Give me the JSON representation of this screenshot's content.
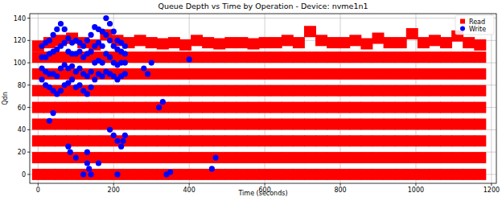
{
  "chart_data": {
    "type": "scatter",
    "title": "Queue Depth vs Time by Operation - Device: nvme1n1",
    "x_label": "Time (seconds)",
    "y_label": "Qdn",
    "xlim": [
      -22,
      1213
    ],
    "ylim": [
      -8,
      144
    ],
    "xticks": [
      0,
      200,
      400,
      600,
      800,
      1000,
      1200
    ],
    "yticks": [
      0,
      20,
      40,
      60,
      80,
      100,
      120,
      140
    ],
    "grid": true,
    "legend": "upper right",
    "series": [
      {
        "name": "Read",
        "color": "#ff0000",
        "marker": "square",
        "x": [
          0,
          0,
          0,
          0,
          0,
          0,
          0,
          0,
          0,
          30,
          30,
          30,
          30,
          30,
          30,
          30,
          30,
          30,
          60,
          60,
          60,
          60,
          60,
          60,
          60,
          60,
          60,
          90,
          90,
          90,
          90,
          90,
          90,
          90,
          90,
          90,
          120,
          120,
          120,
          120,
          120,
          120,
          120,
          120,
          120,
          150,
          150,
          150,
          150,
          150,
          150,
          150,
          150,
          150,
          180,
          180,
          180,
          180,
          180,
          180,
          180,
          180,
          180,
          210,
          210,
          210,
          210,
          210,
          210,
          210,
          210,
          210,
          240,
          240,
          240,
          240,
          240,
          240,
          240,
          240,
          240,
          270,
          270,
          270,
          270,
          270,
          270,
          270,
          270,
          270,
          300,
          300,
          300,
          300,
          300,
          300,
          300,
          300,
          300,
          330,
          330,
          330,
          330,
          330,
          330,
          330,
          330,
          330,
          360,
          360,
          360,
          360,
          360,
          360,
          360,
          360,
          360,
          390,
          390,
          390,
          390,
          390,
          390,
          390,
          390,
          390,
          420,
          420,
          420,
          420,
          420,
          420,
          420,
          420,
          420,
          450,
          450,
          450,
          450,
          450,
          450,
          450,
          450,
          450,
          480,
          480,
          480,
          480,
          480,
          480,
          480,
          480,
          480,
          510,
          510,
          510,
          510,
          510,
          510,
          510,
          510,
          510,
          540,
          540,
          540,
          540,
          540,
          540,
          540,
          540,
          540,
          570,
          570,
          570,
          570,
          570,
          570,
          570,
          570,
          570,
          600,
          600,
          600,
          600,
          600,
          600,
          600,
          600,
          600,
          630,
          630,
          630,
          630,
          630,
          630,
          630,
          630,
          630,
          660,
          660,
          660,
          660,
          660,
          660,
          660,
          660,
          660,
          690,
          690,
          690,
          690,
          690,
          690,
          690,
          690,
          690,
          720,
          720,
          720,
          720,
          720,
          720,
          720,
          720,
          720,
          750,
          750,
          750,
          750,
          750,
          750,
          750,
          750,
          750,
          780,
          780,
          780,
          780,
          780,
          780,
          780,
          780,
          780,
          810,
          810,
          810,
          810,
          810,
          810,
          810,
          810,
          810,
          840,
          840,
          840,
          840,
          840,
          840,
          840,
          840,
          840,
          870,
          870,
          870,
          870,
          870,
          870,
          870,
          870,
          870,
          900,
          900,
          900,
          900,
          900,
          900,
          900,
          900,
          900,
          930,
          930,
          930,
          930,
          930,
          930,
          930,
          930,
          930,
          960,
          960,
          960,
          960,
          960,
          960,
          960,
          960,
          960,
          990,
          990,
          990,
          990,
          990,
          990,
          990,
          990,
          990,
          1020,
          1020,
          1020,
          1020,
          1020,
          1020,
          1020,
          1020,
          1020,
          1050,
          1050,
          1050,
          1050,
          1050,
          1050,
          1050,
          1050,
          1050,
          1080,
          1080,
          1080,
          1080,
          1080,
          1080,
          1080,
          1080,
          1080,
          1110,
          1110,
          1110,
          1110,
          1110,
          1110,
          1110,
          1110,
          1110,
          1140,
          1140,
          1140,
          1140,
          1140,
          1140,
          1140,
          1140,
          1140,
          1170,
          1170,
          1170,
          1170,
          1170,
          1170,
          1170,
          1170,
          1170
        ],
        "values": [
          0,
          15,
          30,
          45,
          60,
          75,
          90,
          105,
          115,
          0,
          15,
          30,
          45,
          60,
          75,
          90,
          105,
          118,
          0,
          15,
          30,
          45,
          60,
          75,
          90,
          105,
          120,
          0,
          15,
          30,
          45,
          60,
          75,
          90,
          105,
          122,
          0,
          15,
          30,
          45,
          60,
          75,
          90,
          105,
          118,
          0,
          15,
          30,
          45,
          60,
          75,
          90,
          105,
          116,
          0,
          15,
          30,
          45,
          60,
          75,
          90,
          105,
          125,
          0,
          15,
          30,
          45,
          60,
          75,
          90,
          105,
          120,
          0,
          15,
          30,
          45,
          60,
          75,
          90,
          105,
          118,
          0,
          15,
          30,
          45,
          60,
          75,
          90,
          105,
          120,
          0,
          15,
          30,
          45,
          60,
          75,
          90,
          105,
          118,
          0,
          15,
          30,
          45,
          60,
          75,
          90,
          105,
          117,
          0,
          15,
          30,
          45,
          60,
          75,
          90,
          105,
          118,
          0,
          15,
          30,
          45,
          60,
          75,
          90,
          105,
          116,
          0,
          15,
          30,
          45,
          60,
          75,
          90,
          105,
          120,
          0,
          15,
          30,
          45,
          60,
          75,
          90,
          105,
          118,
          0,
          15,
          30,
          45,
          60,
          75,
          90,
          105,
          117,
          0,
          15,
          30,
          45,
          60,
          75,
          90,
          105,
          118,
          0,
          15,
          30,
          45,
          60,
          75,
          90,
          105,
          118,
          0,
          15,
          30,
          45,
          60,
          75,
          90,
          105,
          117,
          0,
          15,
          30,
          45,
          60,
          75,
          90,
          105,
          118,
          0,
          15,
          30,
          45,
          60,
          75,
          90,
          105,
          118,
          0,
          15,
          30,
          45,
          60,
          75,
          90,
          105,
          120,
          0,
          15,
          30,
          45,
          60,
          75,
          90,
          105,
          118,
          0,
          15,
          30,
          45,
          60,
          75,
          90,
          105,
          128,
          0,
          15,
          30,
          45,
          60,
          75,
          90,
          105,
          120,
          0,
          15,
          30,
          45,
          60,
          75,
          90,
          105,
          118,
          0,
          15,
          30,
          45,
          60,
          75,
          90,
          105,
          118,
          0,
          15,
          30,
          45,
          60,
          75,
          90,
          105,
          120,
          0,
          15,
          30,
          45,
          60,
          75,
          90,
          105,
          117,
          0,
          15,
          30,
          45,
          60,
          75,
          90,
          105,
          122,
          0,
          15,
          30,
          45,
          60,
          75,
          90,
          105,
          118,
          0,
          15,
          30,
          45,
          60,
          75,
          90,
          105,
          118,
          0,
          15,
          30,
          45,
          60,
          75,
          90,
          105,
          126,
          0,
          15,
          30,
          45,
          60,
          75,
          90,
          105,
          118,
          0,
          15,
          30,
          45,
          60,
          75,
          90,
          105,
          120,
          0,
          15,
          30,
          45,
          60,
          75,
          90,
          105,
          118,
          0,
          15,
          30,
          45,
          60,
          75,
          90,
          105,
          124,
          0,
          15,
          30,
          45,
          60,
          75,
          90,
          105,
          118,
          0,
          15,
          30,
          45,
          60,
          75,
          90,
          105,
          116
        ]
      },
      {
        "name": "Write",
        "color": "#0000ff",
        "marker": "circle",
        "x": [
          10,
          10,
          10,
          10,
          20,
          20,
          20,
          20,
          30,
          30,
          30,
          30,
          40,
          40,
          40,
          40,
          50,
          50,
          50,
          50,
          60,
          60,
          60,
          60,
          70,
          70,
          70,
          70,
          80,
          80,
          80,
          80,
          90,
          90,
          90,
          90,
          100,
          100,
          100,
          100,
          110,
          110,
          110,
          110,
          120,
          120,
          120,
          120,
          130,
          130,
          130,
          130,
          140,
          140,
          140,
          140,
          150,
          150,
          150,
          150,
          160,
          160,
          160,
          160,
          170,
          170,
          170,
          170,
          180,
          180,
          180,
          180,
          190,
          190,
          190,
          190,
          200,
          200,
          200,
          200,
          210,
          210,
          210,
          210,
          220,
          220,
          220,
          220,
          230,
          230,
          230,
          230,
          30,
          40,
          80,
          85,
          100,
          120,
          130,
          130,
          135,
          140,
          160,
          190,
          200,
          210,
          210,
          220,
          225,
          230,
          280,
          290,
          300,
          320,
          330,
          340,
          350,
          400,
          460,
          470
        ],
        "values": [
          85,
          95,
          105,
          115,
          80,
          92,
          105,
          118,
          78,
          90,
          108,
          120,
          75,
          90,
          110,
          125,
          72,
          88,
          112,
          130,
          75,
          95,
          115,
          135,
          80,
          98,
          118,
          130,
          82,
          95,
          110,
          122,
          85,
          97,
          108,
          118,
          78,
          92,
          108,
          120,
          80,
          95,
          110,
          118,
          75,
          90,
          105,
          115,
          72,
          88,
          108,
          120,
          78,
          92,
          110,
          125,
          85,
          100,
          115,
          132,
          90,
          102,
          118,
          130,
          88,
          100,
          115,
          128,
          92,
          108,
          125,
          140,
          90,
          105,
          120,
          135,
          88,
          100,
          115,
          128,
          85,
          98,
          112,
          120,
          88,
          100,
          110,
          118,
          90,
          100,
          108,
          115,
          48,
          55,
          25,
          20,
          15,
          0,
          20,
          10,
          5,
          0,
          10,
          40,
          35,
          30,
          0,
          25,
          30,
          35,
          95,
          90,
          100,
          60,
          65,
          0,
          2,
          103,
          5,
          15
        ]
      }
    ]
  }
}
